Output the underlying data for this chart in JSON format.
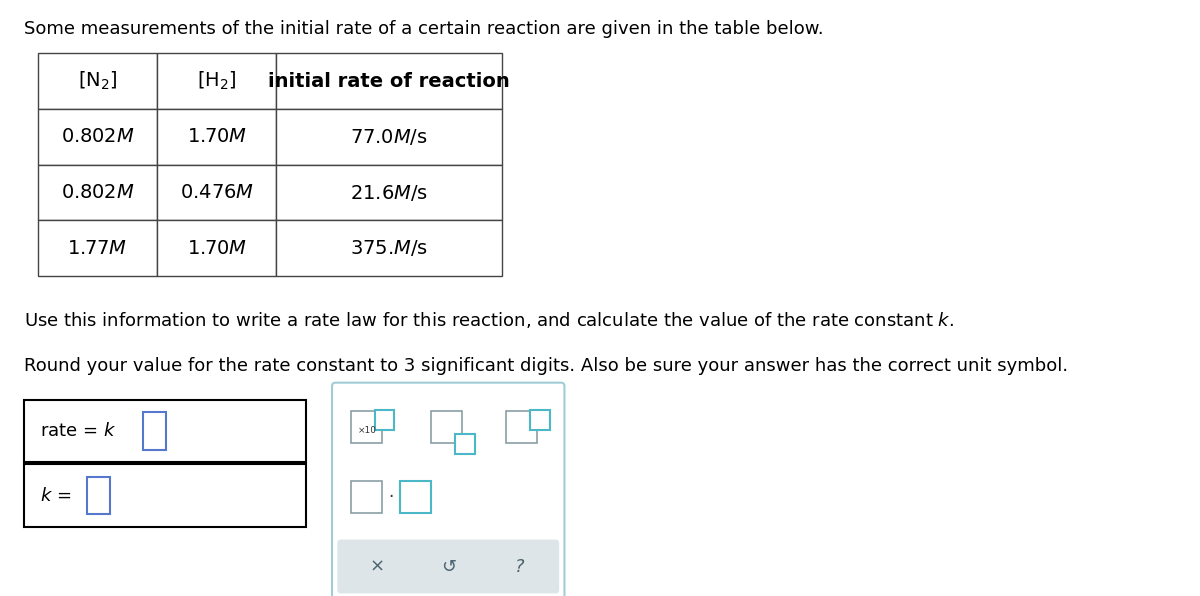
{
  "bg_color": "#ffffff",
  "title_text": "Some measurements of the initial rate of a certain reaction are given in the table below.",
  "col0_header": "$[\\mathrm{N_2}]$",
  "col1_header": "$[\\mathrm{H_2}]$",
  "col2_header": "initial rate of reaction",
  "rows": [
    [
      "0.802$\\mathit{M}$",
      "1.70$\\mathit{M}$",
      "77.0$\\mathit{M}$/s"
    ],
    [
      "0.802$\\mathit{M}$",
      "0.476$\\mathit{M}$",
      "21.6$\\mathit{M}$/s"
    ],
    [
      "1.77$\\mathit{M}$",
      "1.70$\\mathit{M}$",
      "375.$\\mathit{M}$/s"
    ]
  ],
  "info_text1a": "Use this information to write a rate law for this reaction, and calculate the value of the rate constant ",
  "info_text1b": ".",
  "info_text2": "Round your value for the rate constant to 3 significant digits. Also be sure your answer has the correct unit symbol.",
  "font_size_title": 13,
  "font_size_table_hdr": 14,
  "font_size_table_data": 14,
  "font_size_info": 13,
  "font_size_answer": 13,
  "teal_color": "#4bb8c8",
  "gray_color": "#8a9ea5",
  "dark_gray": "#5a6e75",
  "btn_gray": "#c8d0d3"
}
